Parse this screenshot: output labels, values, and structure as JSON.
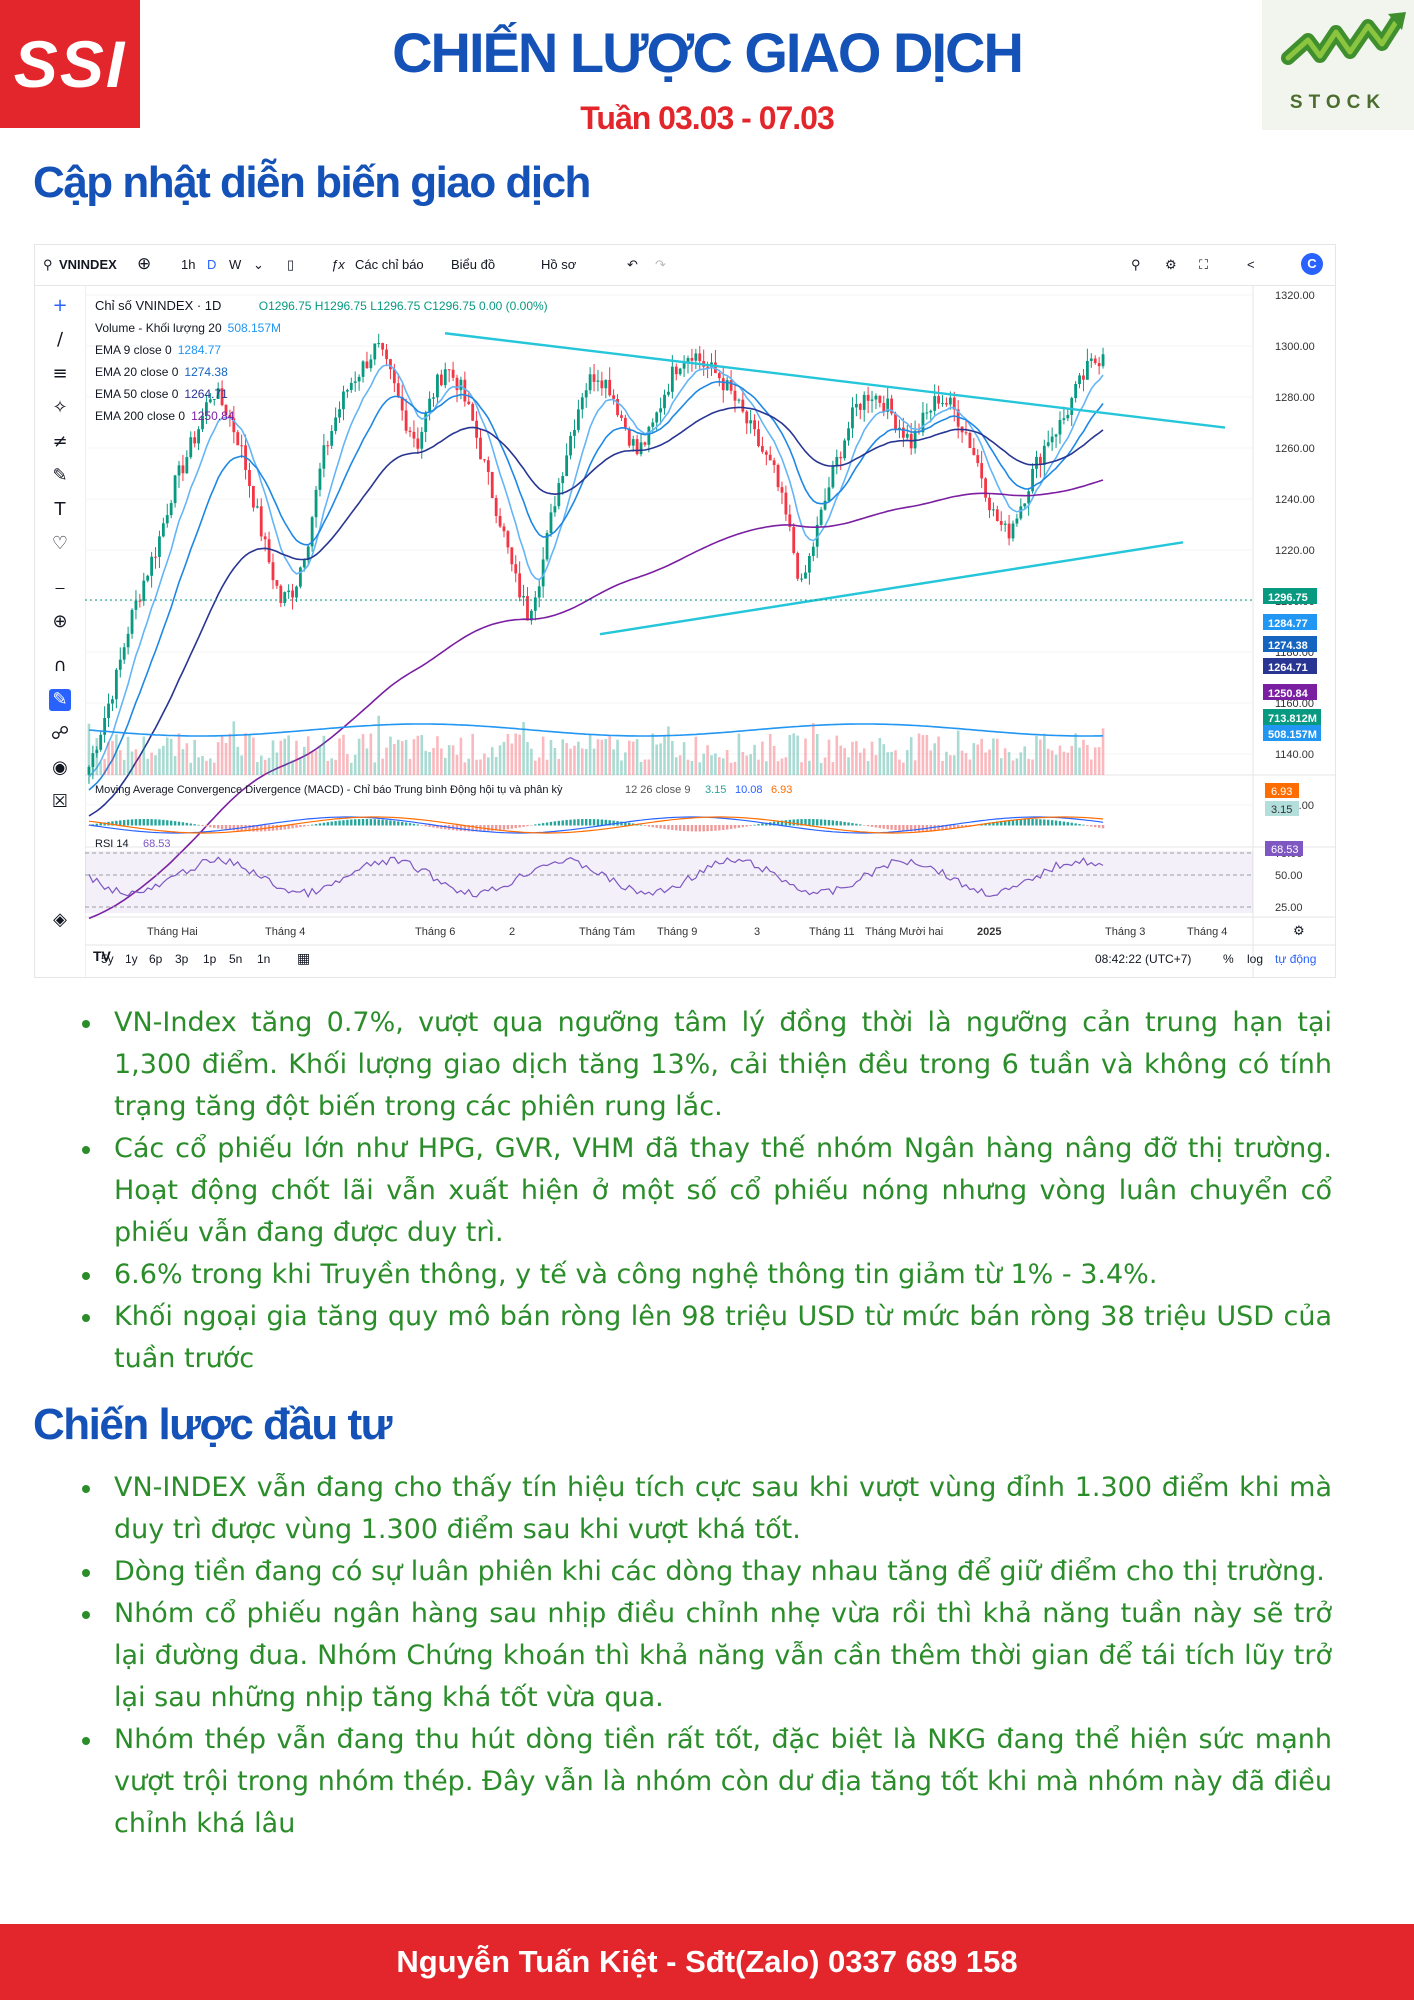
{
  "header": {
    "title": "CHIẾN LƯỢC GIAO DỊCH",
    "week": "Tuần 03.03 - 07.03",
    "logo_left": "SSI",
    "logo_right": "STOCK"
  },
  "section1": {
    "title": "Cập nhật diễn biến giao dịch"
  },
  "chart": {
    "toolbar": {
      "symbol": "VNINDEX",
      "intervals": [
        "1h",
        "D",
        "W"
      ],
      "indicators_label": "Các chỉ báo",
      "chart_label": "Biểu đồ",
      "profile_label": "Hồ sơ"
    },
    "legend": {
      "name": "Chỉ số VNINDEX · 1D",
      "ohlc": "O1296.75 H1296.75 L1296.75 C1296.75 0.00 (0.00%)",
      "volume_label": "Volume - Khối lượng 20",
      "volume_value": "508.157M",
      "ema9_label": "EMA 9 close 0",
      "ema9_value": "1284.77",
      "ema20_label": "EMA 20 close 0",
      "ema20_value": "1274.38",
      "ema50_label": "EMA 50 close 0",
      "ema50_value": "1264.71",
      "ema200_label": "EMA 200 close 0",
      "ema200_value": "1250.84"
    },
    "macd": {
      "label": "Moving Average Convergence Divergence (MACD) - Chỉ báo Trung bình Động hội tụ và phân kỳ",
      "params": "12 26 close 9",
      "v1": "3.15",
      "v2": "10.08",
      "v3": "6.93",
      "tag1": "6.93",
      "tag2": "3.15"
    },
    "rsi": {
      "label": "RSI 14",
      "value": "68.53",
      "tag": "68.53",
      "levels": [
        "75.00",
        "50.00",
        "25.00"
      ]
    },
    "y_ticks": [
      "1320.00",
      "1300.00",
      "1280.00",
      "1260.00",
      "1240.00",
      "1220.00",
      "1200.00",
      "1180.00",
      "1160.00",
      "1140.00",
      "1120.00"
    ],
    "price_tags": [
      {
        "text": "1296.75",
        "color": "#089981"
      },
      {
        "text": "1284.77",
        "color": "#2196f3"
      },
      {
        "text": "1274.38",
        "color": "#1565c0"
      },
      {
        "text": "1264.71",
        "color": "#283593"
      },
      {
        "text": "1250.84",
        "color": "#7b1fa2"
      }
    ],
    "vol_tags": [
      {
        "text": "713.812M",
        "color": "#089981"
      },
      {
        "text": "508.157M",
        "color": "#2196f3"
      }
    ],
    "x_ticks": [
      "Tháng Hai",
      "Tháng 4",
      "Tháng 6",
      "2",
      "Tháng Tám",
      "Tháng 9",
      "3",
      "Tháng 11",
      "Tháng Mười hai",
      "2025",
      "Tháng 3",
      "Tháng 4"
    ],
    "ranges": [
      "5y",
      "1y",
      "6p",
      "3p",
      "1p",
      "5n",
      "1n"
    ],
    "time": "08:42:22 (UTC+7)",
    "pct": "%",
    "log": "log",
    "auto": "tự động",
    "colors": {
      "up": "#089981",
      "down": "#f23645",
      "ema9": "#64b5f6",
      "ema20": "#1e88e5",
      "ema50": "#283593",
      "ema200": "#7b1fa2",
      "trend": "#26c6da"
    }
  },
  "chart_data": {
    "type": "candlestick",
    "series": [
      {
        "name": "VNINDEX",
        "values": [
          1135,
          1152,
          1170,
          1192,
          1208,
          1222,
          1242,
          1255,
          1268,
          1283,
          1275,
          1262,
          1240,
          1218,
          1200,
          1205,
          1225,
          1255,
          1272,
          1285,
          1292,
          1300,
          1288,
          1272,
          1262,
          1280,
          1292,
          1285,
          1270,
          1250,
          1232,
          1210,
          1195,
          1212,
          1240,
          1262,
          1282,
          1290,
          1284,
          1270,
          1258,
          1266,
          1282,
          1294,
          1298,
          1292,
          1288,
          1280,
          1270,
          1260,
          1250,
          1230,
          1205,
          1225,
          1245,
          1262,
          1276,
          1282,
          1278,
          1270,
          1262,
          1272,
          1280,
          1276,
          1266,
          1252,
          1234,
          1226,
          1238,
          1252,
          1264,
          1270,
          1282,
          1292,
          1296.75
        ]
      },
      {
        "name": "EMA 9",
        "values": [
          1284.77
        ]
      },
      {
        "name": "EMA 20",
        "values": [
          1274.38
        ]
      },
      {
        "name": "EMA 50",
        "values": [
          1264.71
        ]
      },
      {
        "name": "EMA 200",
        "values": [
          1250.84
        ]
      }
    ],
    "ylim": [
      1120,
      1320
    ]
  },
  "section2": {
    "title": "Chiến lược đầu tư"
  },
  "bullets1": [
    "VN-Index tăng 0.7%, vượt qua ngưỡng tâm lý đồng thời là ngưỡng cản trung hạn tại 1,300 điểm. Khối lượng giao dịch tăng 13%, cải thiện đều trong 6 tuần và không có tính trạng tăng đột biến trong các phiên rung lắc.",
    "Các cổ phiếu lớn như HPG, GVR, VHM đã thay thế nhóm Ngân hàng nâng đỡ thị trường. Hoạt động chốt lãi vẫn xuất hiện ở một số cổ phiếu nóng nhưng vòng luân chuyển cổ phiếu vẫn đang được duy trì.",
    "6.6% trong khi Truyền thông, y tế và công nghệ thông tin giảm từ 1% - 3.4%.",
    "Khối ngoại gia tăng quy mô bán ròng lên 98 triệu USD từ mức bán ròng 38 triệu USD của tuần trước"
  ],
  "bullets2": [
    "VN-INDEX vẫn đang cho thấy tín hiệu tích cực sau khi vượt vùng đỉnh 1.300 điểm khi mà duy trì được vùng 1.300 điểm sau khi vượt khá tốt.",
    "Dòng tiền đang có sự luân phiên khi các dòng thay nhau tăng để giữ điểm cho thị trường.",
    "Nhóm cổ phiếu ngân hàng sau nhịp điều chỉnh nhẹ vừa rồi thì khả năng tuần này sẽ trở lại đường đua. Nhóm Chứng khoán thì khả năng vẫn cần thêm thời gian để tái tích lũy trở lại sau những nhịp tăng khá tốt vừa qua.",
    "Nhóm thép vẫn đang thu hút dòng tiền rất tốt, đặc biệt là NKG đang thể hiện sức mạnh vượt trội trong nhóm thép. Đây vẫn là nhóm còn dư địa tăng tốt khi mà nhóm này đã điều chỉnh khá lâu"
  ],
  "footer": {
    "text": "Nguyễn Tuấn Kiệt - Sđt(Zalo) 0337 689 158"
  }
}
